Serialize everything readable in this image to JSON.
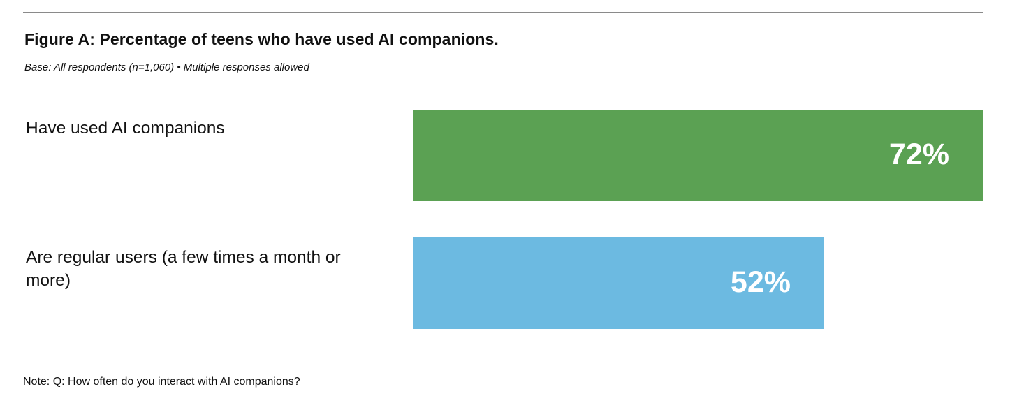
{
  "chart_data": {
    "type": "bar",
    "orientation": "horizontal",
    "title": "Figure A: Percentage of teens who have used AI companions.",
    "subtitle": "Base: All respondents (n=1,060) • Multiple responses allowed",
    "categories": [
      "Have used AI companions",
      "Are regular users (a few times a month or more)"
    ],
    "values": [
      72,
      52
    ],
    "value_labels": [
      "72%",
      "52%"
    ],
    "colors": [
      "#5ba153",
      "#6cbae1"
    ],
    "xlim": [
      0,
      100
    ],
    "xlabel": "",
    "ylabel": "",
    "grid": false,
    "note": "Note: Q: How often do you interact with AI companions?"
  }
}
